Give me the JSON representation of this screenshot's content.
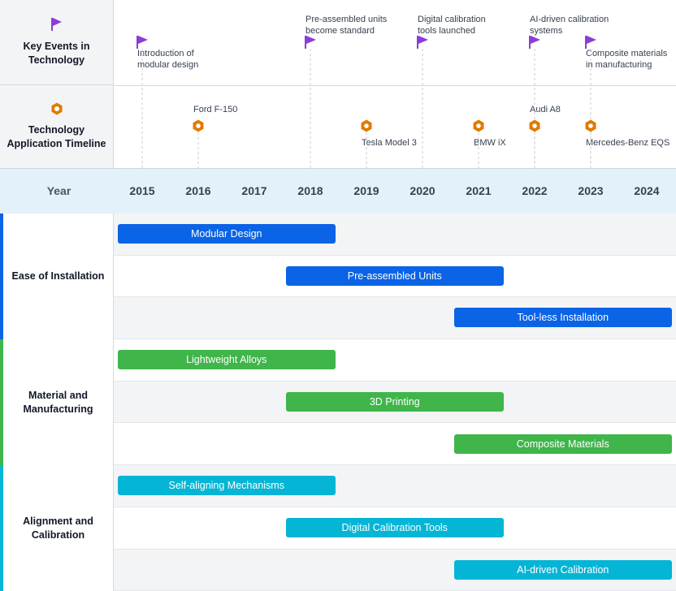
{
  "chart_data": {
    "type": "gantt",
    "x_axis": {
      "label": "Year",
      "ticks": [
        2015,
        2016,
        2017,
        2018,
        2019,
        2020,
        2021,
        2022,
        2023,
        2024
      ],
      "range": [
        2015,
        2024
      ]
    },
    "key_events": {
      "title": "Key Events in Technology",
      "icon": "flag-icon",
      "color": "#8b3dd9",
      "items": [
        {
          "year": 2015,
          "label": "Introduction of\nmodular design",
          "label_side": "below"
        },
        {
          "year": 2018,
          "label": "Pre-assembled units\nbecome standard",
          "label_side": "above"
        },
        {
          "year": 2020,
          "label": "Digital calibration\ntools launched",
          "label_side": "above"
        },
        {
          "year": 2022,
          "label": "AI-driven calibration\nsystems",
          "label_side": "above"
        },
        {
          "year": 2023,
          "label": "Composite materials\nin manufacturing",
          "label_side": "below"
        }
      ]
    },
    "applications": {
      "title": "Technology Application Timeline",
      "icon": "hexagon-nut-icon",
      "color": "#e07b00",
      "items": [
        {
          "year": 2016,
          "label": "Ford F-150",
          "label_side": "above"
        },
        {
          "year": 2019,
          "label": "Tesla Model 3",
          "label_side": "below"
        },
        {
          "year": 2021,
          "label": "BMW iX",
          "label_side": "below"
        },
        {
          "year": 2022,
          "label": "Audi A8",
          "label_side": "above"
        },
        {
          "year": 2023,
          "label": "Mercedes-Benz EQS",
          "label_side": "below"
        }
      ]
    },
    "groups": [
      {
        "name": "Ease of Installation",
        "color": "#0b63e5",
        "tasks": [
          {
            "name": "Modular Design",
            "start": 2015,
            "end": 2018.5
          },
          {
            "name": "Pre-assembled Units",
            "start": 2018,
            "end": 2021.5
          },
          {
            "name": "Tool-less Installation",
            "start": 2021,
            "end": 2024.5
          }
        ]
      },
      {
        "name": "Material and Manufacturing",
        "color": "#3fb54a",
        "tasks": [
          {
            "name": "Lightweight Alloys",
            "start": 2015,
            "end": 2018.5
          },
          {
            "name": "3D Printing",
            "start": 2018,
            "end": 2021.5
          },
          {
            "name": "Composite Materials",
            "start": 2021,
            "end": 2024.5
          }
        ]
      },
      {
        "name": "Alignment and Calibration",
        "color": "#05b5d6",
        "tasks": [
          {
            "name": "Self-aligning Mechanisms",
            "start": 2015,
            "end": 2018.5
          },
          {
            "name": "Digital Calibration Tools",
            "start": 2018,
            "end": 2021.5
          },
          {
            "name": "AI-driven Calibration",
            "start": 2021,
            "end": 2024.5
          }
        ]
      }
    ]
  }
}
